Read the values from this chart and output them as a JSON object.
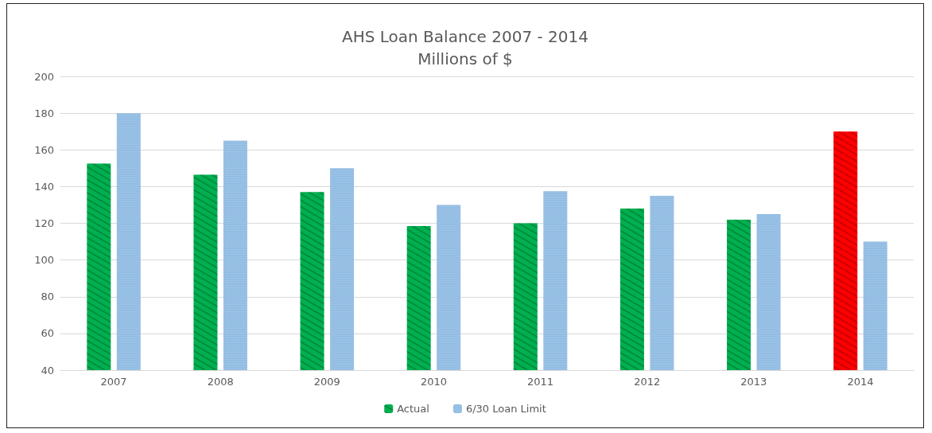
{
  "chart_data": {
    "type": "bar",
    "title": "AHS Loan Balance 2007 - 2014\nMillions of $",
    "categories": [
      "2007",
      "2008",
      "2009",
      "2010",
      "2011",
      "2012",
      "2013",
      "2014"
    ],
    "series": [
      {
        "name": "Actual",
        "color": "#00b050",
        "colors": [
          "#00b050",
          "#00b050",
          "#00b050",
          "#00b050",
          "#00b050",
          "#00b050",
          "#00b050",
          "#ff0000"
        ],
        "values": [
          152.5,
          146.5,
          137,
          118.5,
          120,
          128,
          122,
          170
        ]
      },
      {
        "name": "6/30 Loan Limit",
        "color": "#9dc3e6",
        "values": [
          180,
          165,
          150,
          130,
          137.5,
          135,
          125,
          110
        ]
      }
    ],
    "ylim": [
      40,
      200
    ],
    "yticks": [
      40,
      60,
      80,
      100,
      120,
      140,
      160,
      180,
      200
    ],
    "grid": "y",
    "legend": "bottom"
  }
}
